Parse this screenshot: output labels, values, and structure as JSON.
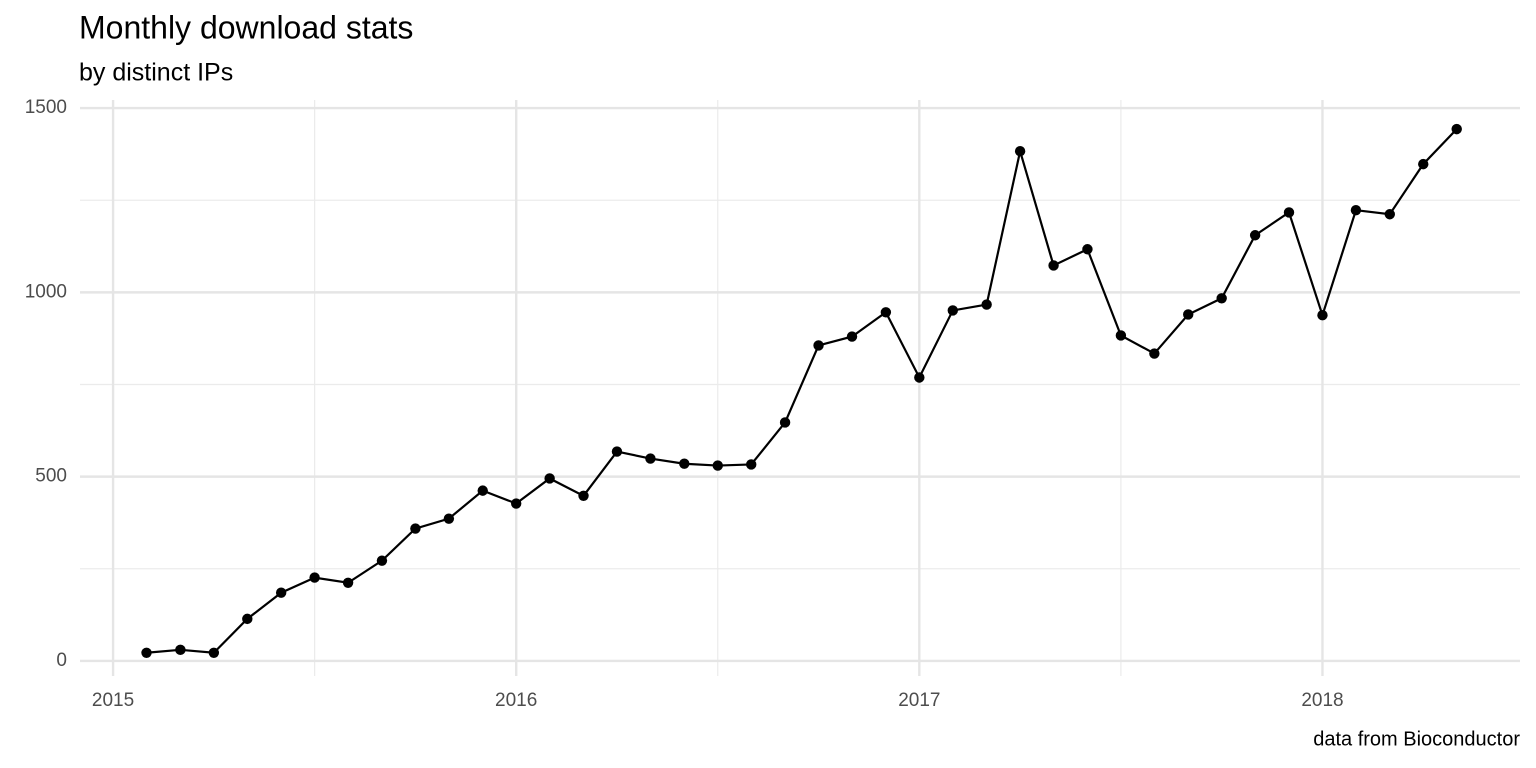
{
  "chart_data": {
    "type": "line",
    "title": "Monthly download stats",
    "subtitle": "by distinct IPs",
    "caption": "data from Bioconductor",
    "x": [
      2015.083,
      2015.167,
      2015.25,
      2015.333,
      2015.417,
      2015.5,
      2015.583,
      2015.667,
      2015.75,
      2015.833,
      2015.917,
      2016.0,
      2016.083,
      2016.167,
      2016.25,
      2016.333,
      2016.417,
      2016.5,
      2016.583,
      2016.667,
      2016.75,
      2016.833,
      2016.917,
      2017.0,
      2017.083,
      2017.167,
      2017.25,
      2017.333,
      2017.417,
      2017.5,
      2017.583,
      2017.667,
      2017.75,
      2017.833,
      2017.917,
      2018.0,
      2018.083,
      2018.167,
      2018.25,
      2018.333
    ],
    "values": [
      22,
      30,
      22,
      114,
      185,
      226,
      212,
      272,
      359,
      386,
      462,
      427,
      495,
      448,
      568,
      549,
      535,
      530,
      533,
      647,
      856,
      880,
      946,
      769,
      951,
      967,
      1383,
      1073,
      1117,
      883,
      834,
      940,
      984,
      1155,
      1217,
      938,
      1223,
      1212,
      1348,
      1443
    ],
    "color": "#000000",
    "xlim": [
      2014.918,
      2018.49
    ],
    "xticks": [
      2015,
      2016,
      2017,
      2018
    ],
    "xminorticks": [
      2015.5,
      2016.5,
      2017.5
    ],
    "ylim": [
      -41,
      1522
    ],
    "yticks": [
      0,
      500,
      1000,
      1500
    ],
    "yminorticks": [
      250,
      750,
      1250
    ],
    "grid": true
  }
}
